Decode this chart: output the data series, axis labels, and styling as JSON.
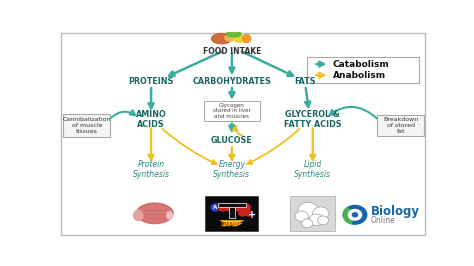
{
  "bg_color": "#ffffff",
  "border_color": "#cccccc",
  "catabolism_color": "#3aada0",
  "anabolism_color": "#f0c020",
  "node_color": "#1a6660",
  "text_color": "#111111",
  "food_intake_label": "FOOD INTAKE",
  "proteins_label": "PROTEINS",
  "carbohydrates_label": "CARBOHYDRATES",
  "fats_label": "FATS",
  "amino_acids_label": "AMINO\nACIDS",
  "glycogen_label": "Glycogen\nstored in liver\nand muscles",
  "glucose_label": "GLUCOSE",
  "glycerol_label": "GLYCEROL &\nFATTY ACIDS",
  "protein_synth_label": "Protein\nSynthesis",
  "energy_synth_label": "Energy\nSynthesis",
  "lipid_synth_label": "Lipid\nSynthesis",
  "cannib_label": "Cannibalization\nof muscle\ntissues",
  "breakdown_label": "Breakdown\nof stored\nfat",
  "catabolism_legend": "Catabolism",
  "anabolism_legend": "Anabolism",
  "xlim": [
    0,
    10
  ],
  "ylim": [
    0,
    7
  ],
  "fi_x": 4.7,
  "fi_y": 6.55,
  "pro_x": 2.5,
  "pro_y": 5.3,
  "carb_x": 4.7,
  "carb_y": 5.3,
  "fat_x": 6.7,
  "fat_y": 5.3,
  "aa_x": 2.5,
  "aa_y": 4.0,
  "gly_x": 4.7,
  "gly_y": 4.3,
  "gluc_x": 4.7,
  "gluc_y": 3.3,
  "glyc_x": 6.9,
  "glyc_y": 4.0,
  "ps_x": 2.5,
  "ps_y": 2.3,
  "es_x": 4.7,
  "es_y": 2.3,
  "ls_x": 6.9,
  "ls_y": 2.3,
  "cannib_x": 0.75,
  "cannib_y": 3.8,
  "break_x": 9.3,
  "break_y": 3.8
}
